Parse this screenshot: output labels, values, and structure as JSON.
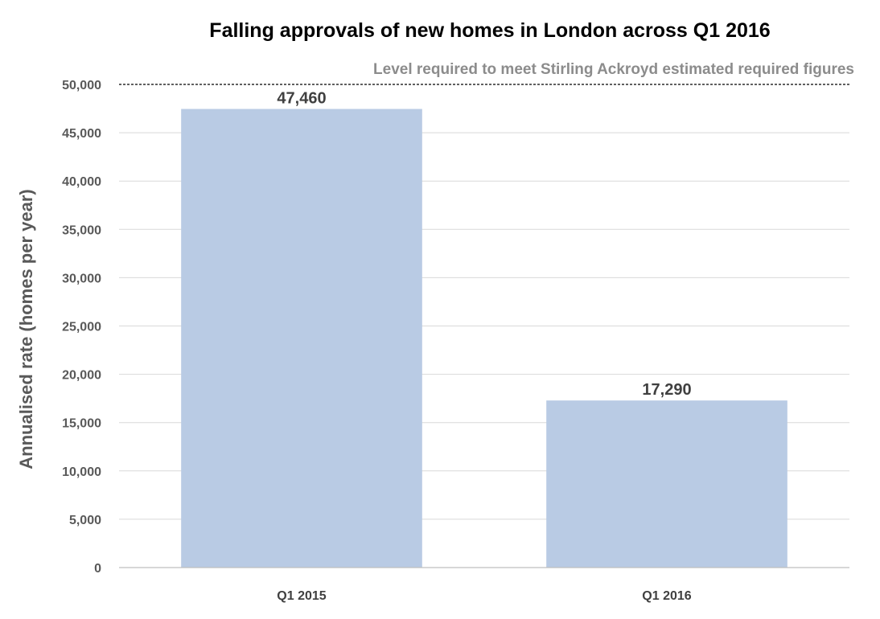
{
  "chart_data": {
    "type": "bar",
    "title": "Falling approvals of new homes in London across  Q1 2016",
    "xlabel": "",
    "ylabel": "Annualised rate (homes per year)",
    "categories": [
      "Q1 2015",
      "Q1 2016"
    ],
    "values": [
      47460,
      17290
    ],
    "data_labels": [
      "47,460",
      "17,290"
    ],
    "ylim": [
      0,
      50000
    ],
    "yticks": [
      0,
      5000,
      10000,
      15000,
      20000,
      25000,
      30000,
      35000,
      40000,
      45000,
      50000
    ],
    "ytick_labels": [
      "0",
      "5,000",
      "10,000",
      "15,000",
      "20,000",
      "25,000",
      "30,000",
      "35,000",
      "40,000",
      "45,000",
      "50,000"
    ],
    "reference_line": {
      "value": 50000,
      "label": "Level required to meet Stirling Ackroyd estimated required figures",
      "style": "dashed"
    },
    "grid": true,
    "legend": "none",
    "colors": {
      "bar": "#b9cbe4",
      "grid": "#d9d9d9",
      "reference": "#000000"
    }
  }
}
